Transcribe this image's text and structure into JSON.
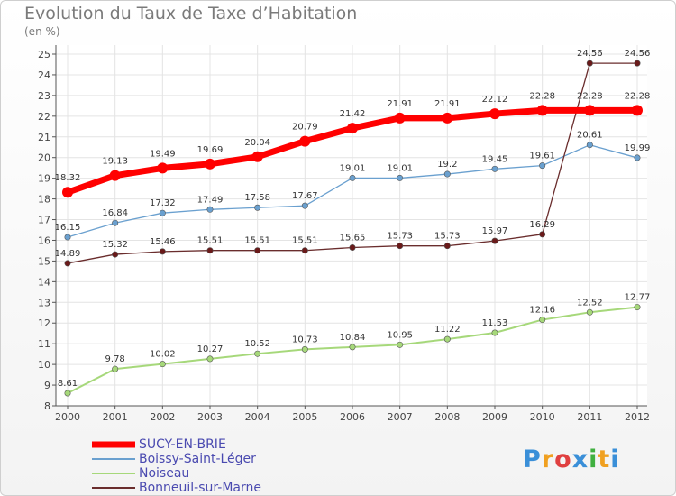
{
  "header": {
    "title": "Evolution du Taux de Taxe d’Habitation",
    "unit": "(en %)"
  },
  "logo": {
    "letters": [
      "P",
      "r",
      "o",
      "x",
      "i",
      "t",
      "i"
    ],
    "colors": [
      "#3a8fd8",
      "#f0a020",
      "#e04040",
      "#3a8fd8",
      "#40b040",
      "#f0a020",
      "#3a8fd8"
    ]
  },
  "chart_data": {
    "type": "line",
    "title": "Evolution du Taux de Taxe d’Habitation",
    "ylabel": "(en %)",
    "x": [
      "2000",
      "2001",
      "2002",
      "2003",
      "2004",
      "2005",
      "2006",
      "2007",
      "2008",
      "2009",
      "2010",
      "2011",
      "2012"
    ],
    "ylim": [
      8,
      25
    ],
    "yticks": [
      8,
      9,
      10,
      11,
      12,
      13,
      14,
      15,
      16,
      17,
      18,
      19,
      20,
      21,
      22,
      23,
      24,
      25
    ],
    "grid": true,
    "legend_position": "bottom-left",
    "series": [
      {
        "name": "SUCY-EN-BRIE",
        "color": "#ff0000",
        "marker": "#ff0000",
        "width": 7,
        "values": [
          18.32,
          19.13,
          19.49,
          19.69,
          20.04,
          20.79,
          21.42,
          21.91,
          21.91,
          22.12,
          22.28,
          22.28,
          22.28
        ],
        "labels": [
          "18.32",
          "19.13",
          "19.49",
          "19.69",
          "20.04",
          "20.79",
          "21.42",
          "21.91",
          "21.91",
          "22.12",
          "22.28",
          "22.28",
          "22.28"
        ]
      },
      {
        "name": "Boissy-Saint-Léger",
        "color": "#6aa0cf",
        "marker": "#6aa0cf",
        "width": 1.3,
        "values": [
          16.15,
          16.84,
          17.32,
          17.49,
          17.58,
          17.67,
          19.01,
          19.01,
          19.2,
          19.45,
          19.61,
          20.61,
          19.99
        ],
        "labels": [
          "16.15",
          "16.84",
          "17.32",
          "17.49",
          "17.58",
          "17.67",
          "19.01",
          "19.01",
          "19.2",
          "19.45",
          "19.61",
          "20.61",
          "19.99"
        ]
      },
      {
        "name": "Noiseau",
        "color": "#a6d87a",
        "marker": "#a6d87a",
        "width": 2,
        "values": [
          8.61,
          9.78,
          10.02,
          10.27,
          10.52,
          10.73,
          10.84,
          10.95,
          11.22,
          11.53,
          12.16,
          12.52,
          12.77
        ],
        "labels": [
          "8.61",
          "9.78",
          "10.02",
          "10.27",
          "10.52",
          "10.73",
          "10.84",
          "10.95",
          "11.22",
          "11.53",
          "12.16",
          "12.52",
          "12.77"
        ]
      },
      {
        "name": "Bonneuil-sur-Marne",
        "color": "#6a2d2d",
        "marker": "#6a1a1a",
        "width": 1.3,
        "values": [
          14.89,
          15.32,
          15.46,
          15.51,
          15.51,
          15.51,
          15.65,
          15.73,
          15.73,
          15.97,
          16.29,
          24.56,
          24.56
        ],
        "labels": [
          "14.89",
          "15.32",
          "15.46",
          "15.51",
          "15.51",
          "15.51",
          "15.65",
          "15.73",
          "15.73",
          "15.97",
          "16.29",
          "24.56",
          "24.56"
        ]
      }
    ]
  }
}
